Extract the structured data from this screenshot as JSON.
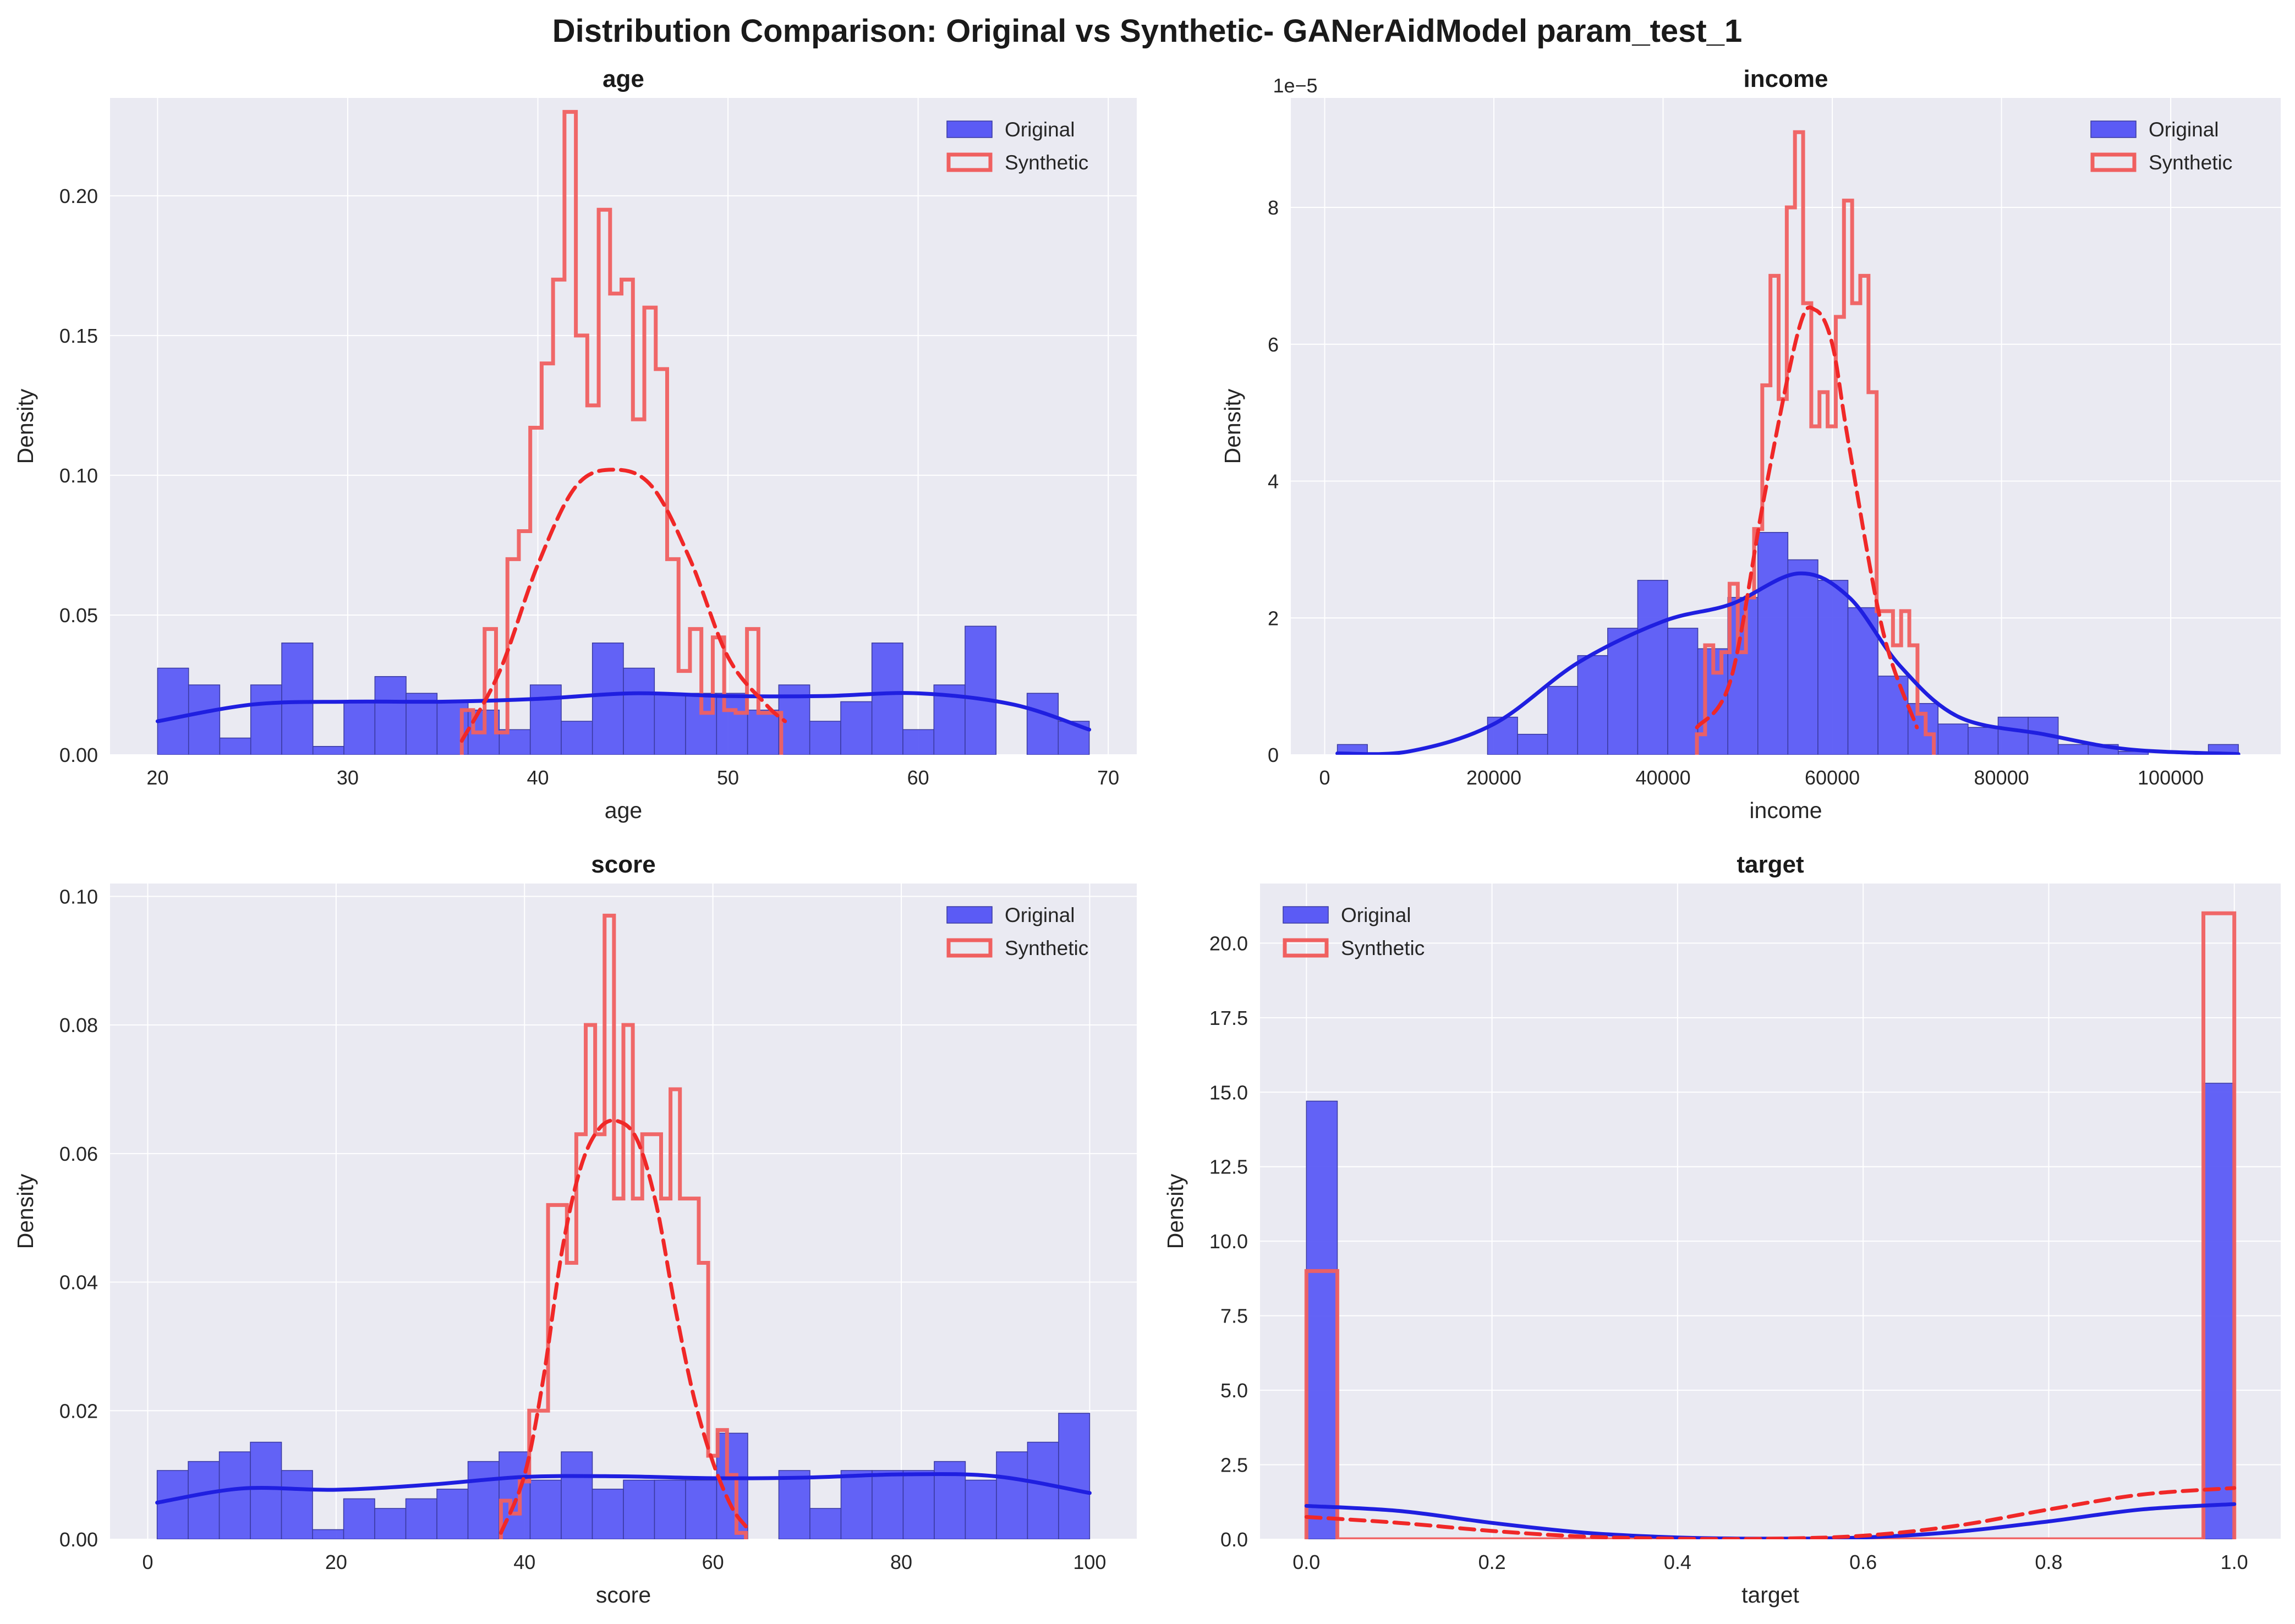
{
  "figure_title": "Distribution Comparison: Original vs Synthetic- GANerAidModel param_test_1",
  "colors": {
    "background": "#eaeaf2",
    "grid": "#ffffff",
    "original_fill": "#5b5bf5",
    "original_edge": "#3a3aa0",
    "original_kde": "#1f1fe0",
    "synthetic_edge": "#f06060",
    "synthetic_kde": "#f02828"
  },
  "chart_data": [
    {
      "type": "histogram",
      "title": "age",
      "xlabel": "age",
      "ylabel": "Density",
      "xlim": [
        17.5,
        71.5
      ],
      "ylim": [
        0,
        0.235
      ],
      "xticks": [
        20,
        30,
        40,
        50,
        60,
        70
      ],
      "yticks": [
        0.0,
        0.05,
        0.1,
        0.15,
        0.2
      ],
      "xtick_labels": [
        "20",
        "30",
        "40",
        "50",
        "60",
        "70"
      ],
      "ytick_labels": [
        "0.00",
        "0.05",
        "0.10",
        "0.15",
        "0.20"
      ],
      "y_offset_label": "",
      "legend": {
        "position": "upper right",
        "entries": [
          "Original",
          "Synthetic"
        ]
      },
      "series": [
        {
          "name": "Original",
          "style": "filled",
          "edges": [
            20,
            21.63,
            23.27,
            24.9,
            26.53,
            28.17,
            29.8,
            31.43,
            33.07,
            34.7,
            36.33,
            37.97,
            39.6,
            41.23,
            42.87,
            44.5,
            46.13,
            47.77,
            49.4,
            51.03,
            52.67,
            54.3,
            55.93,
            57.57,
            59.2,
            60.83,
            62.47,
            64.1,
            65.73,
            67.37,
            69
          ],
          "values": [
            0.031,
            0.025,
            0.006,
            0.025,
            0.04,
            0.003,
            0.019,
            0.028,
            0.022,
            0.019,
            0.016,
            0.009,
            0.025,
            0.012,
            0.04,
            0.031,
            0.022,
            0.022,
            0.022,
            0.016,
            0.025,
            0.012,
            0.019,
            0.04,
            0.009,
            0.025,
            0.046,
            0.0,
            0.022,
            0.012
          ]
        },
        {
          "name": "Synthetic",
          "style": "step",
          "edges": [
            36.0,
            36.6,
            37.2,
            37.8,
            38.4,
            39.0,
            39.6,
            40.2,
            40.8,
            41.4,
            42.0,
            42.6,
            43.2,
            43.8,
            44.4,
            45.0,
            45.6,
            46.2,
            46.8,
            47.4,
            48.0,
            48.6,
            49.2,
            49.8,
            50.4,
            51.0,
            51.6,
            52.2,
            52.8
          ],
          "values": [
            0.016,
            0.008,
            0.045,
            0.008,
            0.07,
            0.08,
            0.117,
            0.14,
            0.17,
            0.23,
            0.15,
            0.125,
            0.195,
            0.165,
            0.17,
            0.12,
            0.16,
            0.138,
            0.07,
            0.03,
            0.045,
            0.015,
            0.042,
            0.016,
            0.015,
            0.045,
            0.015,
            0.015
          ]
        }
      ],
      "kde": [
        {
          "name": "Original",
          "style": "solid",
          "x": [
            20,
            25,
            30,
            35,
            40,
            45,
            50,
            55,
            60,
            65,
            69
          ],
          "y": [
            0.012,
            0.018,
            0.019,
            0.019,
            0.02,
            0.022,
            0.021,
            0.021,
            0.022,
            0.018,
            0.009
          ]
        },
        {
          "name": "Synthetic",
          "style": "dashed",
          "x": [
            36,
            38,
            40,
            42,
            44,
            46,
            48,
            50,
            52,
            53
          ],
          "y": [
            0.005,
            0.03,
            0.068,
            0.096,
            0.102,
            0.096,
            0.07,
            0.035,
            0.018,
            0.012
          ]
        }
      ]
    },
    {
      "type": "histogram",
      "title": "income",
      "xlabel": "income",
      "ylabel": "Density",
      "xlim": [
        -4000,
        113000
      ],
      "ylim": [
        0,
        9.6
      ],
      "xticks": [
        0,
        20000,
        40000,
        60000,
        80000,
        100000
      ],
      "yticks": [
        0,
        2,
        4,
        6,
        8
      ],
      "xtick_labels": [
        "0",
        "20000",
        "40000",
        "60000",
        "80000",
        "100000"
      ],
      "ytick_labels": [
        "0",
        "2",
        "4",
        "6",
        "8"
      ],
      "y_offset_label": "1e−5",
      "legend": {
        "position": "upper right",
        "entries": [
          "Original",
          "Synthetic"
        ]
      },
      "series": [
        {
          "name": "Original",
          "style": "filled",
          "edges": [
            1500,
            5050,
            8600,
            12150,
            15700,
            19250,
            22800,
            26350,
            29900,
            33450,
            37000,
            40550,
            44100,
            47650,
            51200,
            54750,
            58300,
            61850,
            65400,
            68950,
            72500,
            76050,
            79600,
            83150,
            86700,
            90250,
            93800,
            97350,
            100900,
            104450,
            108000
          ],
          "values": [
            0.15,
            0,
            0,
            0,
            0,
            0.55,
            0.3,
            1.0,
            1.45,
            1.85,
            2.55,
            1.85,
            1.55,
            2.3,
            3.25,
            2.85,
            2.55,
            2.15,
            1.15,
            0.75,
            0.45,
            0.4,
            0.55,
            0.55,
            0.15,
            0.15,
            0.05,
            0,
            0,
            0.15
          ]
        },
        {
          "name": "Synthetic",
          "style": "step",
          "edges": [
            44000,
            44966,
            45931,
            46897,
            47862,
            48828,
            49793,
            50759,
            51724,
            52690,
            53655,
            54621,
            55586,
            56552,
            57517,
            58483,
            59448,
            60414,
            61379,
            62345,
            63310,
            64276,
            65241,
            66207,
            67172,
            68138,
            69103,
            70069,
            71034,
            72000
          ],
          "values": [
            0.3,
            1.6,
            1.2,
            1.5,
            2.5,
            1.5,
            2.3,
            3.3,
            5.4,
            7.0,
            5.2,
            8.0,
            9.1,
            6.6,
            4.8,
            5.3,
            4.8,
            6.4,
            8.1,
            6.6,
            7.0,
            5.3,
            2.1,
            2.1,
            1.6,
            2.1,
            1.6,
            0.6,
            0.3
          ]
        }
      ],
      "kde": [
        {
          "name": "Original",
          "style": "solid",
          "x": [
            1500,
            10000,
            20000,
            30000,
            40000,
            48000,
            56000,
            62000,
            68000,
            75000,
            85000,
            95000,
            108000
          ],
          "y": [
            0.02,
            0.05,
            0.45,
            1.35,
            1.95,
            2.2,
            2.65,
            2.3,
            1.3,
            0.55,
            0.3,
            0.08,
            0.01
          ]
        },
        {
          "name": "Synthetic",
          "style": "dashed",
          "x": [
            44000,
            48000,
            52000,
            56000,
            58000,
            60000,
            62000,
            66000,
            70000
          ],
          "y": [
            0.4,
            1.1,
            3.8,
            6.2,
            6.5,
            6.0,
            4.5,
            1.8,
            0.4
          ]
        }
      ]
    },
    {
      "type": "histogram",
      "title": "score",
      "xlabel": "score",
      "ylabel": "Density",
      "xlim": [
        -4,
        105
      ],
      "ylim": [
        0,
        0.102
      ],
      "xticks": [
        0,
        20,
        40,
        60,
        80,
        100
      ],
      "yticks": [
        0.0,
        0.02,
        0.04,
        0.06,
        0.08,
        0.1
      ],
      "xtick_labels": [
        "0",
        "20",
        "40",
        "60",
        "80",
        "100"
      ],
      "ytick_labels": [
        "0.00",
        "0.02",
        "0.04",
        "0.06",
        "0.08",
        "0.10"
      ],
      "y_offset_label": "",
      "legend": {
        "position": "upper right",
        "entries": [
          "Original",
          "Synthetic"
        ]
      },
      "series": [
        {
          "name": "Original",
          "style": "filled",
          "edges": [
            1,
            4.3,
            7.6,
            10.9,
            14.2,
            17.5,
            20.8,
            24.1,
            27.4,
            30.7,
            34,
            37.3,
            40.6,
            43.9,
            47.2,
            50.5,
            53.8,
            57.1,
            60.4,
            63.7,
            67,
            70.3,
            73.6,
            76.9,
            80.2,
            83.5,
            86.8,
            90.1,
            93.4,
            96.7,
            100
          ],
          "values": [
            0.0107,
            0.0121,
            0.0136,
            0.0151,
            0.0107,
            0.0015,
            0.0063,
            0.0048,
            0.0063,
            0.0078,
            0.0121,
            0.0136,
            0.0092,
            0.0136,
            0.0078,
            0.0092,
            0.0092,
            0.0092,
            0.0165,
            0.0,
            0.0107,
            0.0048,
            0.0107,
            0.0107,
            0.0107,
            0.0121,
            0.0092,
            0.0136,
            0.0151,
            0.0196
          ]
        },
        {
          "name": "Synthetic",
          "style": "step",
          "edges": [
            37.5,
            38.5,
            39.5,
            40.5,
            41.5,
            42.5,
            43.5,
            44.5,
            45.5,
            46.5,
            47.5,
            48.5,
            49.5,
            50.5,
            51.5,
            52.5,
            53.5,
            54.5,
            55.5,
            56.5,
            57.5,
            58.5,
            59.5,
            60.5,
            61.5,
            62.5,
            63.5
          ],
          "values": [
            0.006,
            0.004,
            0.009,
            0.02,
            0.02,
            0.052,
            0.052,
            0.043,
            0.063,
            0.08,
            0.063,
            0.097,
            0.053,
            0.08,
            0.053,
            0.063,
            0.063,
            0.053,
            0.07,
            0.053,
            0.053,
            0.043,
            0.013,
            0.017,
            0.01,
            0.001
          ]
        }
      ],
      "kde": [
        {
          "name": "Original",
          "style": "solid",
          "x": [
            1,
            10,
            20,
            30,
            40,
            50,
            60,
            70,
            80,
            90,
            100
          ],
          "y": [
            0.0057,
            0.0079,
            0.0077,
            0.0085,
            0.0097,
            0.0098,
            0.0095,
            0.0096,
            0.0101,
            0.0098,
            0.0072
          ]
        },
        {
          "name": "Synthetic",
          "style": "dashed",
          "x": [
            37.5,
            40,
            42,
            44,
            46,
            48,
            50,
            52,
            54,
            56,
            58,
            60,
            62,
            63.5
          ],
          "y": [
            0.001,
            0.01,
            0.025,
            0.045,
            0.058,
            0.064,
            0.065,
            0.062,
            0.052,
            0.036,
            0.022,
            0.012,
            0.005,
            0.002
          ]
        }
      ]
    },
    {
      "type": "histogram",
      "title": "target",
      "xlabel": "target",
      "ylabel": "Density",
      "xlim": [
        -0.05,
        1.05
      ],
      "ylim": [
        0,
        22.0
      ],
      "xticks": [
        0.0,
        0.2,
        0.4,
        0.6,
        0.8,
        1.0
      ],
      "yticks": [
        0.0,
        2.5,
        5.0,
        7.5,
        10.0,
        12.5,
        15.0,
        17.5,
        20.0
      ],
      "xtick_labels": [
        "0.0",
        "0.2",
        "0.4",
        "0.6",
        "0.8",
        "1.0"
      ],
      "ytick_labels": [
        "0.0",
        "2.5",
        "5.0",
        "7.5",
        "10.0",
        "12.5",
        "15.0",
        "17.5",
        "20.0"
      ],
      "y_offset_label": "",
      "legend": {
        "position": "upper left",
        "entries": [
          "Original",
          "Synthetic"
        ]
      },
      "series": [
        {
          "name": "Original",
          "style": "filled",
          "edges": [
            0,
            0.0333,
            0.0667,
            0.1,
            0.1333,
            0.1667,
            0.2,
            0.2333,
            0.2667,
            0.3,
            0.3333,
            0.3667,
            0.4,
            0.4333,
            0.4667,
            0.5,
            0.5333,
            0.5667,
            0.6,
            0.6333,
            0.6667,
            0.7,
            0.7333,
            0.7667,
            0.8,
            0.8333,
            0.8667,
            0.9,
            0.9333,
            0.9667,
            1.0
          ],
          "values": [
            14.7,
            0,
            0,
            0,
            0,
            0,
            0,
            0,
            0,
            0,
            0,
            0,
            0,
            0,
            0,
            0,
            0,
            0,
            0,
            0,
            0,
            0,
            0,
            0,
            0,
            0,
            0,
            0,
            0,
            15.3
          ]
        },
        {
          "name": "Synthetic",
          "style": "step",
          "edges": [
            0,
            0.0333,
            0.0667,
            0.1,
            0.1333,
            0.1667,
            0.2,
            0.2333,
            0.2667,
            0.3,
            0.3333,
            0.3667,
            0.4,
            0.4333,
            0.4667,
            0.5,
            0.5333,
            0.5667,
            0.6,
            0.6333,
            0.6667,
            0.7,
            0.7333,
            0.7667,
            0.8,
            0.8333,
            0.8667,
            0.9,
            0.9333,
            0.9667,
            1.0
          ],
          "values": [
            9.0,
            0,
            0,
            0,
            0,
            0,
            0,
            0,
            0,
            0,
            0,
            0,
            0,
            0,
            0,
            0,
            0,
            0,
            0,
            0,
            0,
            0,
            0,
            0,
            0,
            0,
            0,
            0,
            0,
            21.0
          ]
        }
      ],
      "kde": [
        {
          "name": "Original",
          "style": "solid",
          "x": [
            0,
            0.1,
            0.2,
            0.3,
            0.4,
            0.5,
            0.6,
            0.7,
            0.8,
            0.9,
            1.0
          ],
          "y": [
            1.12,
            0.95,
            0.55,
            0.22,
            0.06,
            0.02,
            0.06,
            0.25,
            0.6,
            1.0,
            1.18
          ]
        },
        {
          "name": "Synthetic",
          "style": "dashed",
          "x": [
            0,
            0.1,
            0.2,
            0.3,
            0.4,
            0.5,
            0.6,
            0.7,
            0.8,
            0.9,
            1.0
          ],
          "y": [
            0.75,
            0.55,
            0.28,
            0.09,
            0.02,
            0.02,
            0.12,
            0.45,
            1.0,
            1.5,
            1.72
          ]
        }
      ]
    }
  ]
}
